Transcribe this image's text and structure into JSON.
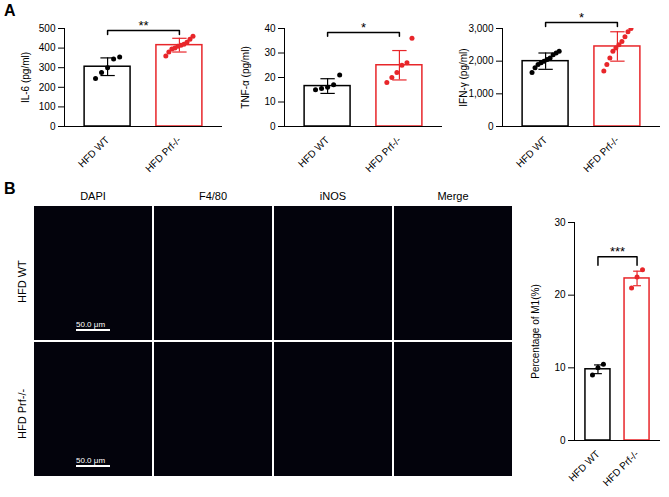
{
  "panel_labels": [
    "A",
    "B"
  ],
  "chart_data": [
    {
      "type": "bar",
      "y_label": "IL-6 (pg/ml)",
      "categories": [
        "HFD WT",
        "HFD Prf-/-"
      ],
      "values": [
        305,
        415
      ],
      "errors": [
        45,
        35
      ],
      "points": [
        [
          245,
          275,
          300,
          345,
          355
        ],
        [
          360,
          380,
          395,
          400,
          410,
          415,
          420,
          430,
          445,
          460
        ]
      ],
      "colors": [
        "#000000",
        "#e8262a"
      ],
      "ylim": [
        0,
        500
      ],
      "yticks": [
        0,
        100,
        200,
        300,
        400,
        500
      ],
      "annotation": "**"
    },
    {
      "type": "bar",
      "y_label": "TNF-α (pg/ml)",
      "categories": [
        "HFD WT",
        "HFD Prf-/-"
      ],
      "values": [
        16.5,
        25
      ],
      "errors": [
        3,
        6
      ],
      "points": [
        [
          15,
          15.5,
          16,
          17,
          21
        ],
        [
          18,
          20,
          22,
          25,
          26,
          36
        ]
      ],
      "colors": [
        "#000000",
        "#e8262a"
      ],
      "ylim": [
        0,
        40
      ],
      "yticks": [
        0,
        10,
        20,
        30,
        40
      ],
      "annotation": "*"
    },
    {
      "type": "bar",
      "y_label": "IFN-γ (pg/ml)",
      "categories": [
        "HFD WT",
        "HFD Prf-/-"
      ],
      "values": [
        2000,
        2450
      ],
      "errors": [
        250,
        450
      ],
      "points": [
        [
          1650,
          1800,
          1900,
          1950,
          2000,
          2050,
          2100,
          2200,
          2250,
          2300
        ],
        [
          1700,
          1900,
          2100,
          2300,
          2400,
          2500,
          2600,
          2750,
          2900,
          3000
        ]
      ],
      "colors": [
        "#000000",
        "#e8262a"
      ],
      "ylim": [
        0,
        3000
      ],
      "yticks": [
        0,
        1000,
        2000,
        3000
      ],
      "annotation": "*"
    },
    {
      "type": "bar",
      "y_label": "Percentage of M1(%)",
      "categories": [
        "HFD WT",
        "HFD Prf-/-"
      ],
      "values": [
        9.8,
        22.3
      ],
      "errors": [
        0.6,
        1
      ],
      "points": [
        [
          9,
          10,
          10.5
        ],
        [
          21,
          22.5,
          23.5
        ]
      ],
      "colors": [
        "#000000",
        "#e8262a"
      ],
      "ylim": [
        0,
        30
      ],
      "yticks": [
        0,
        10,
        20,
        30
      ],
      "annotation": "***"
    }
  ],
  "micrographs": {
    "channels": [
      "DAPI",
      "F4/80",
      "iNOS",
      "Merge"
    ],
    "rows": [
      "HFD WT",
      "HFD Prf-/-"
    ],
    "scale_bar": "50.0 μm"
  }
}
